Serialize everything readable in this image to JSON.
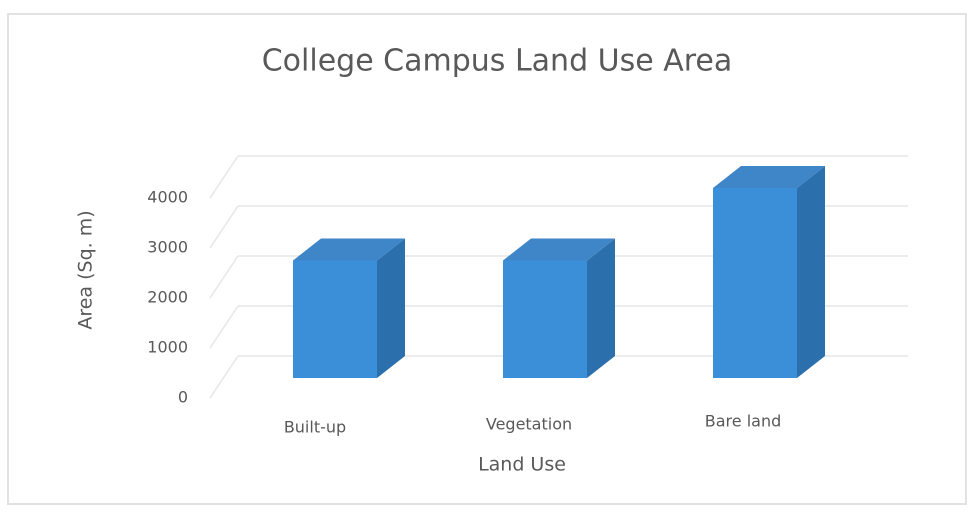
{
  "chart_data": {
    "type": "bar",
    "title": "College Campus Land Use Area",
    "x_label": "Land Use",
    "y_label": "Area (Sq. m)",
    "categories": [
      "Built-up",
      "Vegetation",
      "Bare land"
    ],
    "values": [
      2350,
      2350,
      3800
    ],
    "color": "#3b8fd8",
    "ylim": [
      0,
      4000
    ],
    "yticks": [
      0,
      1000,
      2000,
      3000,
      4000
    ],
    "grid": true
  }
}
